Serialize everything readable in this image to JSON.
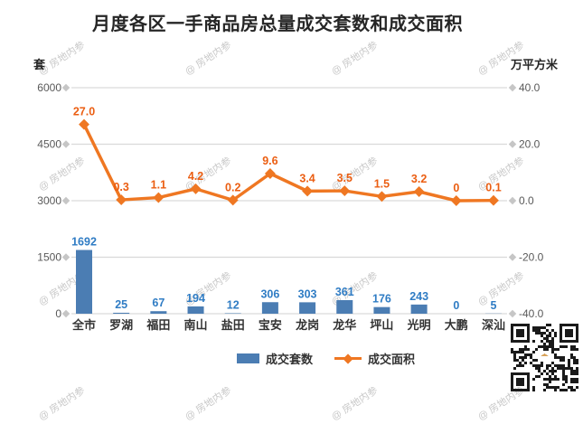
{
  "title": "月度各区一手商品房总量成交套数和成交面积",
  "watermark_text": "@ 房地内参",
  "axes": {
    "left_unit": "套",
    "right_unit": "万平方米",
    "left_ticks": [
      "6000",
      "4500",
      "3000",
      "1500",
      "0"
    ],
    "right_ticks": [
      "40.0",
      "20.0",
      "0.0",
      "-20.0",
      "-40.0"
    ]
  },
  "legend": {
    "bar_label": "成交套数",
    "line_label": "成交面积"
  },
  "colors": {
    "bar": "#4B7DB3",
    "bar_label": "#2F7CC4",
    "line": "#EF7722",
    "line_label": "#EB5E12",
    "grid": "#D9D9D9",
    "tick_diamond": "#C6C6C6",
    "axis_text": "#595959",
    "category_text": "#333333"
  },
  "chart_data": {
    "type": "bar+line combo",
    "title": "月度各区一手商品房总量成交套数和成交面积",
    "categories": [
      "全市",
      "罗湖",
      "福田",
      "南山",
      "盐田",
      "宝安",
      "龙岗",
      "龙华",
      "坪山",
      "光明",
      "大鹏",
      "深汕"
    ],
    "series": [
      {
        "name": "成交套数",
        "type": "bar",
        "axis": "left",
        "unit": "套",
        "values": [
          1692,
          25,
          67,
          194,
          12,
          306,
          303,
          361,
          176,
          243,
          0,
          5
        ],
        "labels": [
          "1692",
          "25",
          "67",
          "194",
          "12",
          "306",
          "303",
          "361",
          "176",
          "243",
          "0",
          "5"
        ]
      },
      {
        "name": "成交面积",
        "type": "line",
        "axis": "right",
        "unit": "万平方米",
        "values": [
          27.0,
          0.3,
          1.1,
          4.2,
          0.2,
          9.6,
          3.4,
          3.5,
          1.5,
          3.2,
          0,
          0.1
        ],
        "labels": [
          "27.0",
          "0.3",
          "1.1",
          "4.2",
          "0.2",
          "9.6",
          "3.4",
          "3.5",
          "1.5",
          "3.2",
          "0",
          "0.1"
        ]
      }
    ],
    "left_ylim": [
      0,
      6000
    ],
    "right_ylim": [
      -40.0,
      40.0
    ],
    "grid": true,
    "legend_position": "bottom"
  }
}
